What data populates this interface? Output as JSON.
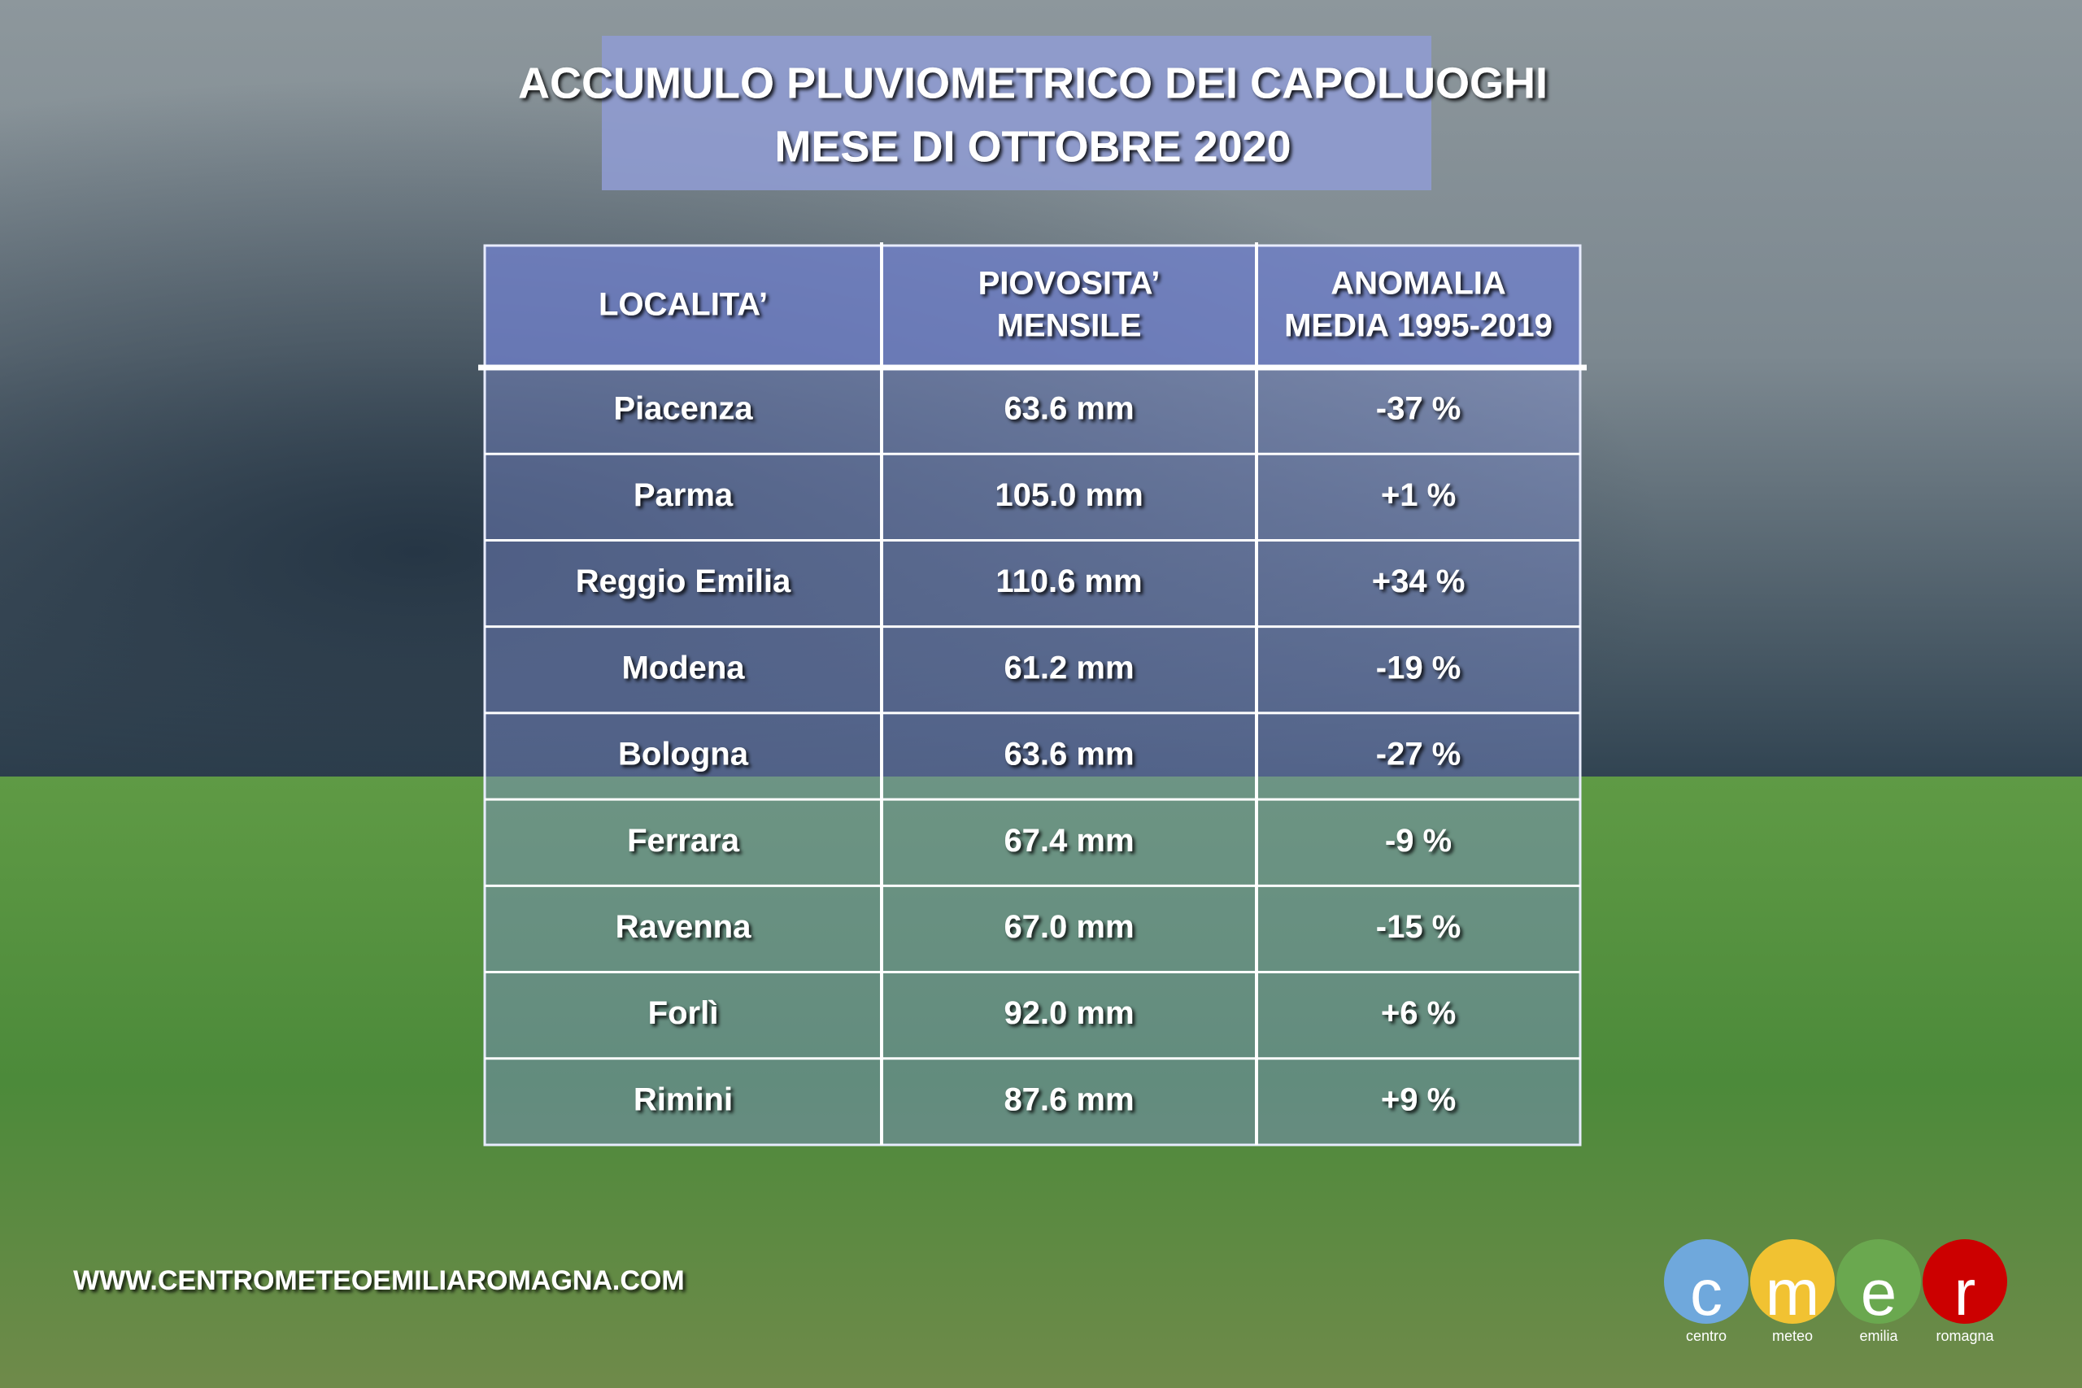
{
  "header": {
    "title": [
      "ACCUMULO PLUVIOMETRICO DEI CAPOLUOGHI",
      "MESE DI OTTOBRE 2020"
    ]
  },
  "table": {
    "columns": [
      [
        "LOCALITA’"
      ],
      [
        "PIOVOSITA’",
        "MENSILE"
      ],
      [
        "ANOMALIA",
        "MEDIA 1995-2019"
      ]
    ],
    "rows": [
      [
        "Piacenza",
        "63.6 mm",
        "-37 %"
      ],
      [
        "Parma",
        "105.0 mm",
        "+1 %"
      ],
      [
        "Reggio Emilia",
        "110.6 mm",
        "+34 %"
      ],
      [
        "Modena",
        "61.2 mm",
        "-19 %"
      ],
      [
        "Bologna",
        "63.6 mm",
        "-27 %"
      ],
      [
        "Ferrara",
        "67.4 mm",
        "-9 %"
      ],
      [
        "Ravenna",
        "67.0 mm",
        "-15 %"
      ],
      [
        "Forlì",
        "92.0 mm",
        "+6 %"
      ],
      [
        "Rimini",
        "87.6 mm",
        "+9 %"
      ]
    ]
  },
  "footer": {
    "website": "WWW.CENTROMETEOEMILIAROMAGNA.COM"
  },
  "logo": {
    "letters": [
      "c",
      "m",
      "e",
      "r"
    ],
    "labels": [
      "centro",
      "meteo",
      "emilia",
      "romagna"
    ]
  }
}
